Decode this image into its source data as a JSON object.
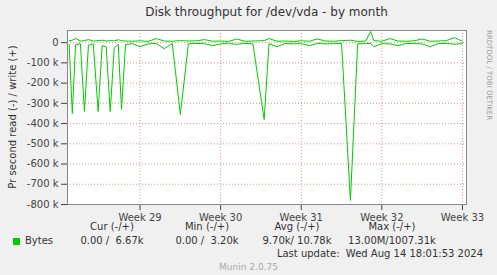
{
  "chart_data": {
    "type": "line",
    "title": "Disk throughput for /dev/vda - by month",
    "y_label": "Pr second read (-) / write (+)",
    "x": [
      28.12,
      28.16,
      28.2,
      28.26,
      28.31,
      28.36,
      28.42,
      28.48,
      28.53,
      28.58,
      28.63,
      28.68,
      28.73,
      28.77,
      28.82,
      28.9,
      29.0,
      29.1,
      29.2,
      29.3,
      29.4,
      29.5,
      29.6,
      29.7,
      29.8,
      29.9,
      30.0,
      30.1,
      30.2,
      30.3,
      30.4,
      30.54,
      30.6,
      30.7,
      30.8,
      30.9,
      31.0,
      31.1,
      31.2,
      31.3,
      31.4,
      31.5,
      31.61,
      31.7,
      31.8,
      31.86,
      31.9,
      32.0,
      32.1,
      32.2,
      32.3,
      32.4,
      32.5,
      32.6,
      32.7,
      32.8,
      32.9,
      33.0
    ],
    "series": [
      {
        "name": "Bytes",
        "color": "#00cc00",
        "values": [
          10000,
          12000,
          20000,
          8000,
          10000,
          15000,
          8000,
          10000,
          12000,
          8000,
          10000,
          9000,
          14000,
          10000,
          8000,
          7000,
          9000,
          6000,
          20000,
          8000,
          7000,
          10000,
          8000,
          9000,
          15000,
          7000,
          8000,
          6000,
          18000,
          7000,
          8000,
          10000,
          20000,
          7000,
          8000,
          6000,
          9000,
          7000,
          18000,
          8000,
          7000,
          10000,
          12000,
          6000,
          8000,
          55000,
          10000,
          7000,
          20000,
          8000,
          7000,
          9000,
          18000,
          7000,
          8000,
          10000,
          25000,
          7000
        ],
        "read_values": [
          -8000,
          -350000,
          -10000,
          -5000,
          -340000,
          -12000,
          -6000,
          -340000,
          -15000,
          -20000,
          -340000,
          -25000,
          -8000,
          -330000,
          -10000,
          -5000,
          -20000,
          -6000,
          -4000,
          -30000,
          -5000,
          -355000,
          -6000,
          -4000,
          -5000,
          -15000,
          -6000,
          -5000,
          -8000,
          -4000,
          -6000,
          -380000,
          -5000,
          -20000,
          -4000,
          -6000,
          -5000,
          -15000,
          -4000,
          -6000,
          -5000,
          -4000,
          -780000,
          -6000,
          -5000,
          -4000,
          -20000,
          -5000,
          -6000,
          -15000,
          -4000,
          -5000,
          -6000,
          -20000,
          -5000,
          -4000,
          -8000,
          -5000
        ]
      }
    ],
    "xlim": [
      28.1,
      33.05
    ],
    "xticks": [
      {
        "value": 29,
        "label": "Week 29"
      },
      {
        "value": 30,
        "label": "Week 30"
      },
      {
        "value": 31,
        "label": "Week 31"
      },
      {
        "value": 32,
        "label": "Week 32"
      },
      {
        "value": 33,
        "label": "Week 33"
      }
    ],
    "ylim": [
      -800000,
      60000
    ],
    "yticks": [
      0,
      {
        "value": -100000,
        "label": "-100 k"
      },
      {
        "value": -200000,
        "label": "-200 k"
      },
      {
        "value": -300000,
        "label": "-300 k"
      },
      {
        "value": -400000,
        "label": "-400 k"
      },
      {
        "value": -500000,
        "label": "-500 k"
      },
      {
        "value": -600000,
        "label": "-600 k"
      },
      {
        "value": -700000,
        "label": "-700 k"
      },
      {
        "value": -800000,
        "label": "-800 k"
      }
    ],
    "grid": true,
    "stats": {
      "columns": [
        "Cur (-/+)",
        "Min (-/+)",
        "Avg (-/+)",
        "Max (-/+)"
      ],
      "rows": [
        {
          "label": "Bytes",
          "values": [
            "0.00 /  6.67k",
            "0.00 /  3.20k",
            "9.70k/ 10.78k",
            "13.00M/1007.31k"
          ]
        }
      ]
    },
    "last_update": "Last update:  Wed Aug 14 18:01:53 2024",
    "footer": "Munin 2.0.75",
    "side_text": "RRDTOOL / TOBI OETIKER"
  }
}
